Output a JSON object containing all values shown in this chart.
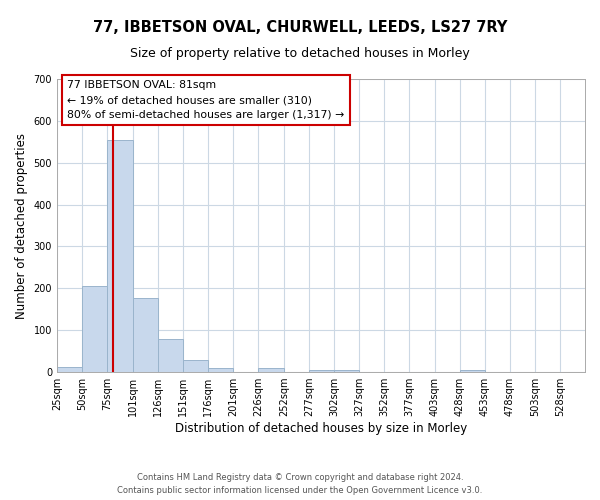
{
  "title": "77, IBBETSON OVAL, CHURWELL, LEEDS, LS27 7RY",
  "subtitle": "Size of property relative to detached houses in Morley",
  "xlabel": "Distribution of detached houses by size in Morley",
  "ylabel": "Number of detached properties",
  "bar_edges": [
    25,
    50,
    75,
    101,
    126,
    151,
    176,
    201,
    226,
    252,
    277,
    302,
    327,
    352,
    377,
    403,
    428,
    453,
    478,
    503,
    528,
    553
  ],
  "bar_heights": [
    12,
    206,
    554,
    178,
    78,
    30,
    10,
    0,
    10,
    0,
    5,
    5,
    0,
    0,
    0,
    0,
    5,
    0,
    0,
    0,
    0
  ],
  "bar_color": "#c8d8ec",
  "bar_edge_color": "#9ab4cc",
  "tick_labels": [
    "25sqm",
    "50sqm",
    "75sqm",
    "101sqm",
    "126sqm",
    "151sqm",
    "176sqm",
    "201sqm",
    "226sqm",
    "252sqm",
    "277sqm",
    "302sqm",
    "327sqm",
    "352sqm",
    "377sqm",
    "403sqm",
    "428sqm",
    "453sqm",
    "478sqm",
    "503sqm",
    "528sqm"
  ],
  "tick_positions": [
    25,
    50,
    75,
    101,
    126,
    151,
    176,
    201,
    226,
    252,
    277,
    302,
    327,
    352,
    377,
    403,
    428,
    453,
    478,
    503,
    528
  ],
  "vline_x": 81,
  "vline_color": "#cc0000",
  "annotation_line1": "77 IBBETSON OVAL: 81sqm",
  "annotation_line2": "← 19% of detached houses are smaller (310)",
  "annotation_line3": "80% of semi-detached houses are larger (1,317) →",
  "footer1": "Contains HM Land Registry data © Crown copyright and database right 2024.",
  "footer2": "Contains public sector information licensed under the Open Government Licence v3.0.",
  "ylim": [
    0,
    700
  ],
  "yticks": [
    0,
    100,
    200,
    300,
    400,
    500,
    600,
    700
  ],
  "xlim": [
    25,
    553
  ],
  "background_color": "#ffffff",
  "grid_color": "#ccd8e4"
}
